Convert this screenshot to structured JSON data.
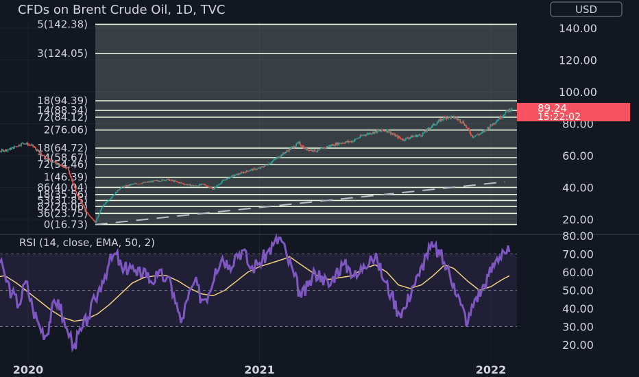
{
  "chart_data": [
    {
      "type": "candlestick",
      "title": "CFDs on Brent Crude Oil, 1D, TVC",
      "currency": "USD",
      "ylim": [
        12,
        150
      ],
      "y_ticks": [
        "140.00",
        "120.00",
        "100.00",
        "80.00",
        "60.00",
        "40.00",
        "20.00"
      ],
      "x_ticks": [
        "2020",
        "2021",
        "2022"
      ],
      "last_price": "89.24",
      "countdown": "15:22:02",
      "fib_levels": [
        {
          "label": "5(142.38)",
          "value": 142.38
        },
        {
          "label": "3(124.05)",
          "value": 124.05
        },
        {
          "label": "18(94.39)",
          "value": 94.39
        },
        {
          "label": "14(88.34)",
          "value": 88.34
        },
        {
          "label": "72(84.12)",
          "value": 84.12
        },
        {
          "label": "2(76.06)",
          "value": 76.06
        },
        {
          "label": "18(64.72)",
          "value": 64.72
        },
        {
          "label": "14(58.67)",
          "value": 58.67
        },
        {
          "label": "72(54.46)",
          "value": 54.46
        },
        {
          "label": "1(46.39)",
          "value": 46.39
        },
        {
          "label": "86(40.04)",
          "value": 40.04
        },
        {
          "label": "18(35.56)",
          "value": 35.56
        },
        {
          "label": "53(31.85)",
          "value": 31.85
        },
        {
          "label": "82(28.06)",
          "value": 28.06
        },
        {
          "label": "36(23.75)",
          "value": 23.75
        },
        {
          "label": "0(16.73)",
          "value": 16.73
        }
      ],
      "close_path": [
        [
          2019.79,
          66
        ],
        [
          2019.85,
          62
        ],
        [
          2019.92,
          64
        ],
        [
          2019.98,
          68
        ],
        [
          2020.02,
          66
        ],
        [
          2020.06,
          60
        ],
        [
          2020.12,
          55
        ],
        [
          2020.17,
          52
        ],
        [
          2020.21,
          36
        ],
        [
          2020.25,
          25
        ],
        [
          2020.29,
          18
        ],
        [
          2020.32,
          28
        ],
        [
          2020.36,
          34
        ],
        [
          2020.4,
          40
        ],
        [
          2020.45,
          42
        ],
        [
          2020.5,
          43
        ],
        [
          2020.55,
          44
        ],
        [
          2020.6,
          45
        ],
        [
          2020.63,
          44
        ],
        [
          2020.68,
          42
        ],
        [
          2020.72,
          41
        ],
        [
          2020.76,
          42
        ],
        [
          2020.8,
          39
        ],
        [
          2020.84,
          44
        ],
        [
          2020.88,
          47
        ],
        [
          2020.92,
          49
        ],
        [
          2020.96,
          51
        ],
        [
          2021.0,
          52
        ],
        [
          2021.04,
          55
        ],
        [
          2021.08,
          59
        ],
        [
          2021.12,
          63
        ],
        [
          2021.17,
          68
        ],
        [
          2021.2,
          64
        ],
        [
          2021.25,
          63
        ],
        [
          2021.3,
          66
        ],
        [
          2021.35,
          68
        ],
        [
          2021.4,
          69
        ],
        [
          2021.45,
          73
        ],
        [
          2021.5,
          75
        ],
        [
          2021.55,
          76
        ],
        [
          2021.58,
          73
        ],
        [
          2021.62,
          70
        ],
        [
          2021.66,
          72
        ],
        [
          2021.7,
          73
        ],
        [
          2021.74,
          78
        ],
        [
          2021.78,
          82
        ],
        [
          2021.8,
          84
        ],
        [
          2021.84,
          84
        ],
        [
          2021.88,
          81
        ],
        [
          2021.92,
          72
        ],
        [
          2021.96,
          74
        ],
        [
          2022.0,
          79
        ],
        [
          2022.04,
          84
        ],
        [
          2022.07,
          88
        ],
        [
          2022.09,
          89.24
        ]
      ],
      "trendline": [
        [
          2020.29,
          16.7
        ],
        [
          2022.06,
          43.5
        ]
      ]
    },
    {
      "type": "line",
      "title": "RSI (14, close, EMA, 50, 2)",
      "ylim": [
        10,
        80
      ],
      "y_ticks": [
        "80.00",
        "70.00",
        "60.00",
        "50.00",
        "40.00",
        "30.00",
        "20.00"
      ],
      "bands": [
        70,
        30
      ],
      "midline": 50,
      "series": [
        {
          "color": "#7e57c2",
          "points": [
            [
              2019.79,
              60
            ],
            [
              2019.83,
              66
            ],
            [
              2019.86,
              70
            ],
            [
              2019.9,
              58
            ],
            [
              2019.93,
              48
            ],
            [
              2019.96,
              42
            ],
            [
              2019.99,
              55
            ],
            [
              2020.02,
              40
            ],
            [
              2020.05,
              30
            ],
            [
              2020.08,
              25
            ],
            [
              2020.1,
              38
            ],
            [
              2020.13,
              45
            ],
            [
              2020.16,
              30
            ],
            [
              2020.2,
              20
            ],
            [
              2020.23,
              28
            ],
            [
              2020.26,
              35
            ],
            [
              2020.29,
              45
            ],
            [
              2020.32,
              55
            ],
            [
              2020.35,
              65
            ],
            [
              2020.38,
              70
            ],
            [
              2020.41,
              60
            ],
            [
              2020.44,
              64
            ],
            [
              2020.47,
              58
            ],
            [
              2020.5,
              62
            ],
            [
              2020.53,
              55
            ],
            [
              2020.56,
              58
            ],
            [
              2020.6,
              57
            ],
            [
              2020.63,
              48
            ],
            [
              2020.66,
              32
            ],
            [
              2020.69,
              45
            ],
            [
              2020.72,
              55
            ],
            [
              2020.75,
              45
            ],
            [
              2020.78,
              48
            ],
            [
              2020.81,
              62
            ],
            [
              2020.84,
              68
            ],
            [
              2020.87,
              64
            ],
            [
              2020.9,
              70
            ],
            [
              2020.93,
              72
            ],
            [
              2020.96,
              62
            ],
            [
              2021.0,
              65
            ],
            [
              2021.03,
              70
            ],
            [
              2021.06,
              75
            ],
            [
              2021.09,
              79
            ],
            [
              2021.12,
              68
            ],
            [
              2021.15,
              58
            ],
            [
              2021.18,
              46
            ],
            [
              2021.21,
              52
            ],
            [
              2021.24,
              60
            ],
            [
              2021.27,
              58
            ],
            [
              2021.3,
              52
            ],
            [
              2021.33,
              60
            ],
            [
              2021.36,
              64
            ],
            [
              2021.39,
              62
            ],
            [
              2021.42,
              57
            ],
            [
              2021.45,
              64
            ],
            [
              2021.48,
              69
            ],
            [
              2021.51,
              66
            ],
            [
              2021.54,
              55
            ],
            [
              2021.57,
              48
            ],
            [
              2021.6,
              38
            ],
            [
              2021.63,
              40
            ],
            [
              2021.66,
              52
            ],
            [
              2021.69,
              58
            ],
            [
              2021.72,
              70
            ],
            [
              2021.75,
              74
            ],
            [
              2021.78,
              70
            ],
            [
              2021.81,
              62
            ],
            [
              2021.84,
              54
            ],
            [
              2021.87,
              42
            ],
            [
              2021.9,
              32
            ],
            [
              2021.93,
              45
            ],
            [
              2021.96,
              50
            ],
            [
              2021.99,
              58
            ],
            [
              2022.02,
              66
            ],
            [
              2022.05,
              72
            ],
            [
              2022.08,
              71
            ]
          ]
        },
        {
          "color": "#f0d080",
          "points": [
            [
              2019.79,
              54
            ],
            [
              2019.85,
              57
            ],
            [
              2019.9,
              58
            ],
            [
              2019.95,
              54
            ],
            [
              2020.0,
              49
            ],
            [
              2020.05,
              44
            ],
            [
              2020.1,
              39
            ],
            [
              2020.15,
              35
            ],
            [
              2020.2,
              33
            ],
            [
              2020.25,
              34
            ],
            [
              2020.3,
              37
            ],
            [
              2020.35,
              42
            ],
            [
              2020.4,
              48
            ],
            [
              2020.45,
              54
            ],
            [
              2020.5,
              57
            ],
            [
              2020.55,
              58
            ],
            [
              2020.6,
              58
            ],
            [
              2020.65,
              55
            ],
            [
              2020.7,
              51
            ],
            [
              2020.75,
              48
            ],
            [
              2020.8,
              47
            ],
            [
              2020.85,
              50
            ],
            [
              2020.9,
              55
            ],
            [
              2020.95,
              60
            ],
            [
              2021.0,
              63
            ],
            [
              2021.05,
              65
            ],
            [
              2021.1,
              67
            ],
            [
              2021.13,
              68.5
            ],
            [
              2021.18,
              64
            ],
            [
              2021.25,
              58
            ],
            [
              2021.3,
              56
            ],
            [
              2021.35,
              57
            ],
            [
              2021.4,
              58
            ],
            [
              2021.45,
              62
            ],
            [
              2021.5,
              64
            ],
            [
              2021.55,
              60
            ],
            [
              2021.6,
              53
            ],
            [
              2021.65,
              51
            ],
            [
              2021.7,
              53
            ],
            [
              2021.75,
              58
            ],
            [
              2021.8,
              64
            ],
            [
              2021.84,
              62
            ],
            [
              2021.9,
              55
            ],
            [
              2021.95,
              50
            ],
            [
              2022.0,
              52
            ],
            [
              2022.05,
              56
            ],
            [
              2022.08,
              58
            ]
          ]
        }
      ]
    }
  ]
}
